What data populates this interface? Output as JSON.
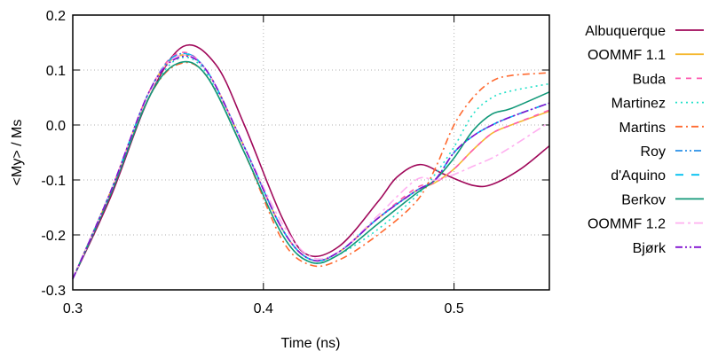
{
  "chart_data": {
    "type": "line",
    "xlabel": "Time (ns)",
    "ylabel": "<My> / Ms",
    "xlim": [
      0.3,
      0.55
    ],
    "ylim": [
      -0.3,
      0.2
    ],
    "xticks": [
      "0.3",
      "0.4",
      "0.5"
    ],
    "yticks": [
      "0.2",
      "0.1",
      "0.0",
      "-0.1",
      "-0.2",
      "-0.3"
    ],
    "grid": true,
    "legend_position": "right",
    "series": [
      {
        "name": "Albuquerque",
        "color": "#a0085a",
        "dash": "",
        "x": [
          0.3,
          0.32,
          0.34,
          0.358,
          0.375,
          0.39,
          0.41,
          0.423,
          0.44,
          0.46,
          0.47,
          0.482,
          0.495,
          0.51,
          0.52,
          0.535,
          0.55
        ],
        "y": [
          -0.28,
          -0.13,
          0.05,
          0.143,
          0.11,
          0.0,
          -0.17,
          -0.236,
          -0.22,
          -0.14,
          -0.095,
          -0.072,
          -0.09,
          -0.11,
          -0.108,
          -0.08,
          -0.038
        ]
      },
      {
        "name": "OOMMF 1.1",
        "color": "#f5b830",
        "dash": "",
        "x": [
          0.3,
          0.32,
          0.34,
          0.355,
          0.37,
          0.39,
          0.41,
          0.425,
          0.44,
          0.46,
          0.48,
          0.49,
          0.5,
          0.51,
          0.52,
          0.53,
          0.55
        ],
        "y": [
          -0.28,
          -0.12,
          0.06,
          0.125,
          0.1,
          -0.04,
          -0.19,
          -0.245,
          -0.23,
          -0.17,
          -0.12,
          -0.105,
          -0.08,
          -0.045,
          -0.015,
          0.0,
          0.025
        ]
      },
      {
        "name": "Buda",
        "color": "#ff5ab0",
        "dash": "6,6",
        "x": [
          0.3,
          0.32,
          0.34,
          0.355,
          0.37,
          0.39,
          0.41,
          0.425,
          0.44,
          0.46,
          0.48,
          0.49,
          0.5,
          0.51,
          0.52,
          0.53,
          0.55
        ],
        "y": [
          -0.28,
          -0.12,
          0.06,
          0.13,
          0.1,
          -0.04,
          -0.19,
          -0.245,
          -0.23,
          -0.17,
          -0.115,
          -0.105,
          -0.08,
          -0.045,
          -0.015,
          0.0,
          0.027
        ]
      },
      {
        "name": "Martinez",
        "color": "#20e0c8",
        "dash": "2,4",
        "x": [
          0.3,
          0.32,
          0.34,
          0.355,
          0.37,
          0.39,
          0.41,
          0.425,
          0.44,
          0.46,
          0.48,
          0.49,
          0.5,
          0.51,
          0.52,
          0.53,
          0.55
        ],
        "y": [
          -0.28,
          -0.12,
          0.05,
          0.12,
          0.095,
          -0.05,
          -0.2,
          -0.25,
          -0.235,
          -0.19,
          -0.13,
          -0.09,
          -0.04,
          0.02,
          0.05,
          0.062,
          0.075
        ]
      },
      {
        "name": "Martins",
        "color": "#ff6a30",
        "dash": "8,4,2,4",
        "x": [
          0.3,
          0.32,
          0.34,
          0.355,
          0.37,
          0.39,
          0.41,
          0.425,
          0.44,
          0.46,
          0.48,
          0.49,
          0.5,
          0.51,
          0.52,
          0.53,
          0.55
        ],
        "y": [
          -0.28,
          -0.12,
          0.05,
          0.11,
          0.09,
          -0.05,
          -0.21,
          -0.255,
          -0.245,
          -0.2,
          -0.14,
          -0.08,
          0.0,
          0.05,
          0.08,
          0.09,
          0.095
        ]
      },
      {
        "name": "Roy",
        "color": "#2a90e8",
        "dash": "8,3,2,3,2,3",
        "x": [
          0.3,
          0.32,
          0.34,
          0.355,
          0.37,
          0.39,
          0.41,
          0.425,
          0.44,
          0.46,
          0.48,
          0.49,
          0.5,
          0.51,
          0.52,
          0.53,
          0.55
        ],
        "y": [
          -0.28,
          -0.12,
          0.06,
          0.128,
          0.1,
          -0.04,
          -0.19,
          -0.245,
          -0.23,
          -0.17,
          -0.12,
          -0.1,
          -0.05,
          -0.02,
          0.0,
          0.015,
          0.04
        ]
      },
      {
        "name": "d'Aquino",
        "color": "#00c0f0",
        "dash": "9,9",
        "x": [
          0.3,
          0.32,
          0.34,
          0.355,
          0.37,
          0.39,
          0.41,
          0.425,
          0.44,
          0.46,
          0.48,
          0.49,
          0.5,
          0.51,
          0.52,
          0.53,
          0.55
        ],
        "y": [
          -0.28,
          -0.12,
          0.06,
          0.127,
          0.1,
          -0.04,
          -0.19,
          -0.245,
          -0.23,
          -0.17,
          -0.12,
          -0.1,
          -0.05,
          -0.02,
          0.0,
          0.015,
          0.04
        ]
      },
      {
        "name": "Berkov",
        "color": "#109878",
        "dash": "",
        "x": [
          0.3,
          0.32,
          0.34,
          0.355,
          0.37,
          0.39,
          0.41,
          0.425,
          0.44,
          0.46,
          0.48,
          0.49,
          0.5,
          0.51,
          0.52,
          0.53,
          0.55
        ],
        "y": [
          -0.28,
          -0.125,
          0.05,
          0.112,
          0.09,
          -0.05,
          -0.2,
          -0.25,
          -0.235,
          -0.18,
          -0.125,
          -0.1,
          -0.06,
          -0.01,
          0.02,
          0.03,
          0.06
        ]
      },
      {
        "name": "OOMMF 1.2",
        "color": "#ffb0f0",
        "dash": "10,4,3,4",
        "x": [
          0.3,
          0.32,
          0.34,
          0.355,
          0.37,
          0.39,
          0.41,
          0.425,
          0.44,
          0.46,
          0.48,
          0.49,
          0.5,
          0.51,
          0.52,
          0.53,
          0.55
        ],
        "y": [
          -0.28,
          -0.12,
          0.06,
          0.125,
          0.1,
          -0.04,
          -0.18,
          -0.24,
          -0.23,
          -0.165,
          -0.1,
          -0.1,
          -0.09,
          -0.075,
          -0.06,
          -0.04,
          0.005
        ]
      },
      {
        "name": "Bjørk",
        "color": "#8010d0",
        "dash": "8,3,2,3,2,3",
        "x": [
          0.3,
          0.32,
          0.34,
          0.355,
          0.37,
          0.39,
          0.41,
          0.425,
          0.44,
          0.46,
          0.48,
          0.49,
          0.5,
          0.51,
          0.52,
          0.53,
          0.55
        ],
        "y": [
          -0.28,
          -0.12,
          0.06,
          0.122,
          0.1,
          -0.04,
          -0.19,
          -0.245,
          -0.23,
          -0.17,
          -0.12,
          -0.1,
          -0.05,
          -0.02,
          0.0,
          0.015,
          0.04
        ]
      }
    ]
  }
}
